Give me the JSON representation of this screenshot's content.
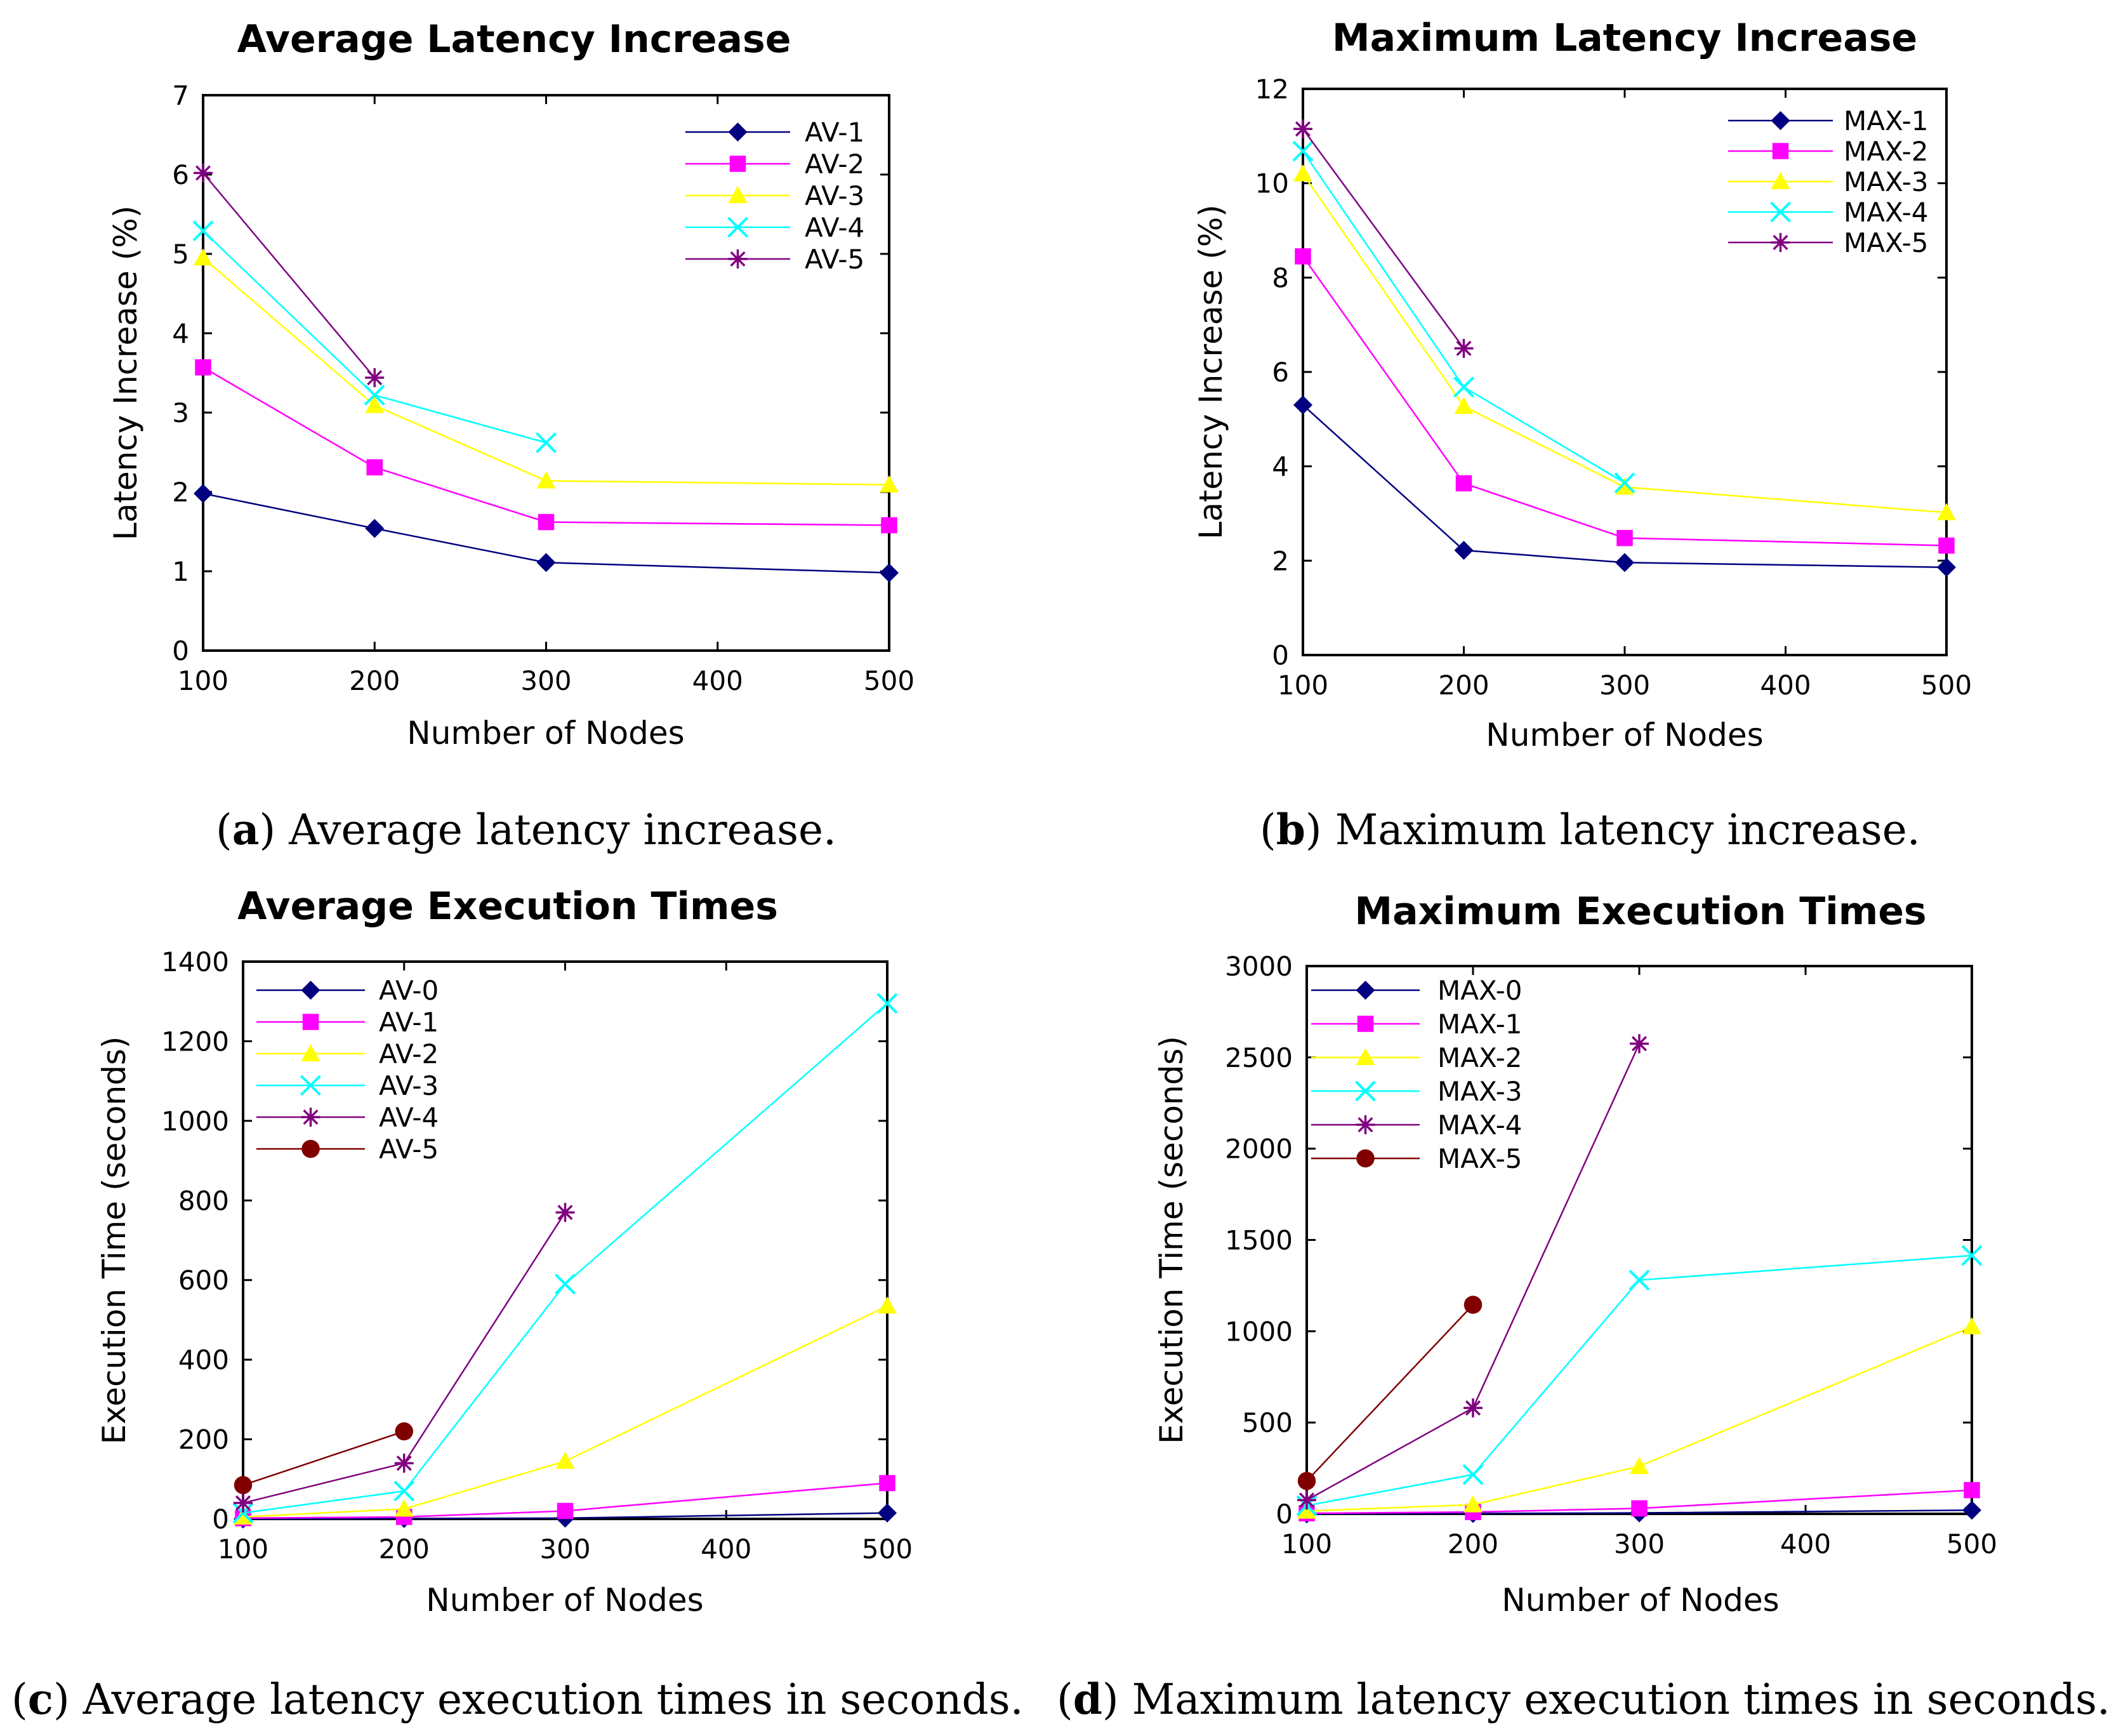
{
  "chart_data": [
    {
      "type": "line",
      "title": "Average Latency Increase",
      "xlabel": "Number of Nodes",
      "ylabel": "Latency Increase (%)",
      "xlim": [
        100,
        500
      ],
      "ylim": [
        0,
        7
      ],
      "xticks": [
        100,
        200,
        300,
        400,
        500
      ],
      "yticks": [
        0,
        1,
        2,
        3,
        4,
        5,
        6,
        7
      ],
      "legend_position": "top-right",
      "caption_letter": "a",
      "caption_text": " Average latency increase.",
      "series": [
        {
          "name": "AV-1",
          "color": "#000080",
          "marker": "diamond",
          "x": [
            100,
            200,
            300,
            500
          ],
          "y": [
            1.98,
            1.54,
            1.11,
            0.98
          ]
        },
        {
          "name": "AV-2",
          "color": "#ff00ff",
          "marker": "square",
          "x": [
            100,
            200,
            300,
            500
          ],
          "y": [
            3.57,
            2.31,
            1.62,
            1.58
          ]
        },
        {
          "name": "AV-3",
          "color": "#ffff00",
          "marker": "triangle",
          "x": [
            100,
            200,
            300,
            500
          ],
          "y": [
            4.95,
            3.09,
            2.14,
            2.09
          ]
        },
        {
          "name": "AV-4",
          "color": "#00ffff",
          "marker": "x",
          "x": [
            100,
            200,
            300
          ],
          "y": [
            5.29,
            3.22,
            2.62
          ]
        },
        {
          "name": "AV-5",
          "color": "#800080",
          "marker": "star",
          "x": [
            100,
            200
          ],
          "y": [
            6.02,
            3.44
          ]
        }
      ]
    },
    {
      "type": "line",
      "title": "Maximum Latency Increase",
      "xlabel": "Number of Nodes",
      "ylabel": "Latency Increase (%)",
      "xlim": [
        100,
        500
      ],
      "ylim": [
        0,
        12
      ],
      "xticks": [
        100,
        200,
        300,
        400,
        500
      ],
      "yticks": [
        0,
        2,
        4,
        6,
        8,
        10,
        12
      ],
      "legend_position": "top-right",
      "caption_letter": "b",
      "caption_text": " Maximum latency increase.",
      "series": [
        {
          "name": "MAX-1",
          "color": "#000080",
          "marker": "diamond",
          "x": [
            100,
            200,
            300,
            500
          ],
          "y": [
            5.3,
            2.22,
            1.96,
            1.86
          ]
        },
        {
          "name": "MAX-2",
          "color": "#ff00ff",
          "marker": "square",
          "x": [
            100,
            200,
            300,
            500
          ],
          "y": [
            8.45,
            3.64,
            2.48,
            2.32
          ]
        },
        {
          "name": "MAX-3",
          "color": "#ffff00",
          "marker": "triangle",
          "x": [
            100,
            200,
            300,
            500
          ],
          "y": [
            10.2,
            5.27,
            3.56,
            3.02
          ]
        },
        {
          "name": "MAX-4",
          "color": "#00ffff",
          "marker": "x",
          "x": [
            100,
            200,
            300
          ],
          "y": [
            10.68,
            5.68,
            3.65
          ]
        },
        {
          "name": "MAX-5",
          "color": "#800080",
          "marker": "star",
          "x": [
            100,
            200
          ],
          "y": [
            11.15,
            6.5
          ]
        }
      ]
    },
    {
      "type": "line",
      "title": "Average Execution Times",
      "xlabel": "Number of Nodes",
      "ylabel": "Execution Time (seconds)",
      "xlim": [
        100,
        500
      ],
      "ylim": [
        0,
        1400
      ],
      "xticks": [
        100,
        200,
        300,
        400,
        500
      ],
      "yticks": [
        0,
        200,
        400,
        600,
        800,
        1000,
        1200,
        1400
      ],
      "legend_position": "top-left",
      "caption_letter": "c",
      "caption_text": " Average latency execution times in seconds.",
      "series": [
        {
          "name": "AV-0",
          "color": "#000080",
          "marker": "diamond",
          "x": [
            100,
            200,
            300,
            500
          ],
          "y": [
            0,
            1,
            2,
            15
          ]
        },
        {
          "name": "AV-1",
          "color": "#ff00ff",
          "marker": "square",
          "x": [
            100,
            200,
            300,
            500
          ],
          "y": [
            2,
            5,
            20,
            90
          ]
        },
        {
          "name": "AV-2",
          "color": "#ffff00",
          "marker": "triangle",
          "x": [
            100,
            200,
            300,
            500
          ],
          "y": [
            5,
            25,
            145,
            535
          ]
        },
        {
          "name": "AV-3",
          "color": "#00ffff",
          "marker": "x",
          "x": [
            100,
            200,
            300,
            500
          ],
          "y": [
            15,
            70,
            590,
            1295
          ]
        },
        {
          "name": "AV-4",
          "color": "#800080",
          "marker": "star",
          "x": [
            100,
            200,
            300
          ],
          "y": [
            40,
            140,
            770
          ]
        },
        {
          "name": "AV-5",
          "color": "#800000",
          "marker": "circle",
          "x": [
            100,
            200
          ],
          "y": [
            85,
            220
          ]
        }
      ]
    },
    {
      "type": "line",
      "title": "Maximum Execution Times",
      "xlabel": "Number of Nodes",
      "ylabel": "Execution Time (seconds)",
      "xlim": [
        100,
        500
      ],
      "ylim": [
        0,
        3000
      ],
      "xticks": [
        100,
        200,
        300,
        400,
        500
      ],
      "yticks": [
        0,
        500,
        1000,
        1500,
        2000,
        2500,
        3000
      ],
      "legend_position": "top-left",
      "caption_letter": "d",
      "caption_text": " Maximum latency execution times in seconds.",
      "series": [
        {
          "name": "MAX-0",
          "color": "#000080",
          "marker": "diamond",
          "x": [
            100,
            200,
            300,
            500
          ],
          "y": [
            0,
            2,
            5,
            20
          ]
        },
        {
          "name": "MAX-1",
          "color": "#ff00ff",
          "marker": "square",
          "x": [
            100,
            200,
            300,
            500
          ],
          "y": [
            3,
            10,
            30,
            130
          ]
        },
        {
          "name": "MAX-2",
          "color": "#ffff00",
          "marker": "triangle",
          "x": [
            100,
            200,
            300,
            500
          ],
          "y": [
            15,
            50,
            260,
            1025
          ]
        },
        {
          "name": "MAX-3",
          "color": "#00ffff",
          "marker": "x",
          "x": [
            100,
            200,
            300,
            500
          ],
          "y": [
            45,
            215,
            1280,
            1415
          ]
        },
        {
          "name": "MAX-4",
          "color": "#800080",
          "marker": "star",
          "x": [
            100,
            200,
            300
          ],
          "y": [
            75,
            580,
            2575
          ]
        },
        {
          "name": "MAX-5",
          "color": "#800000",
          "marker": "circle",
          "x": [
            100,
            200
          ],
          "y": [
            180,
            1145
          ]
        }
      ]
    }
  ]
}
